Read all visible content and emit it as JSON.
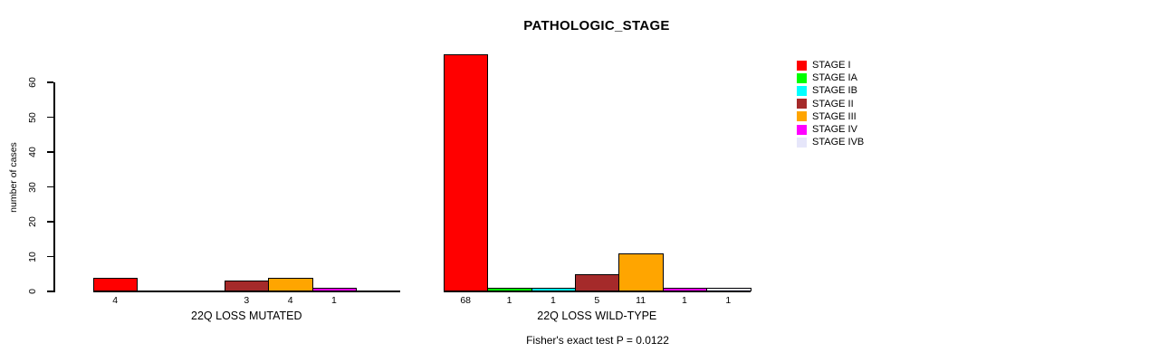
{
  "chart_data": {
    "type": "bar",
    "title": "PATHOLOGIC_STAGE",
    "ylabel": "number of cases",
    "xlabel": "",
    "ylim": [
      0,
      60
    ],
    "yticks": [
      0,
      10,
      20,
      30,
      40,
      50,
      60
    ],
    "grid": false,
    "legend_position": "right",
    "categories": [
      "STAGE I",
      "STAGE IA",
      "STAGE IB",
      "STAGE II",
      "STAGE III",
      "STAGE IV",
      "STAGE IVB"
    ],
    "colors": [
      "#FF0000",
      "#00FF00",
      "#00FFFF",
      "#A52A2A",
      "#FFA500",
      "#FF00FF",
      "#E6E6FA"
    ],
    "groups": [
      {
        "label": "22Q LOSS MUTATED",
        "values": [
          4,
          0,
          0,
          3,
          4,
          1,
          0
        ]
      },
      {
        "label": "22Q LOSS WILD-TYPE",
        "values": [
          68,
          1,
          1,
          5,
          11,
          1,
          1
        ]
      }
    ],
    "bar_value_labels_shown_only_for_nonzero": true,
    "annotation": "Fisher's exact test P = 0.0122"
  }
}
